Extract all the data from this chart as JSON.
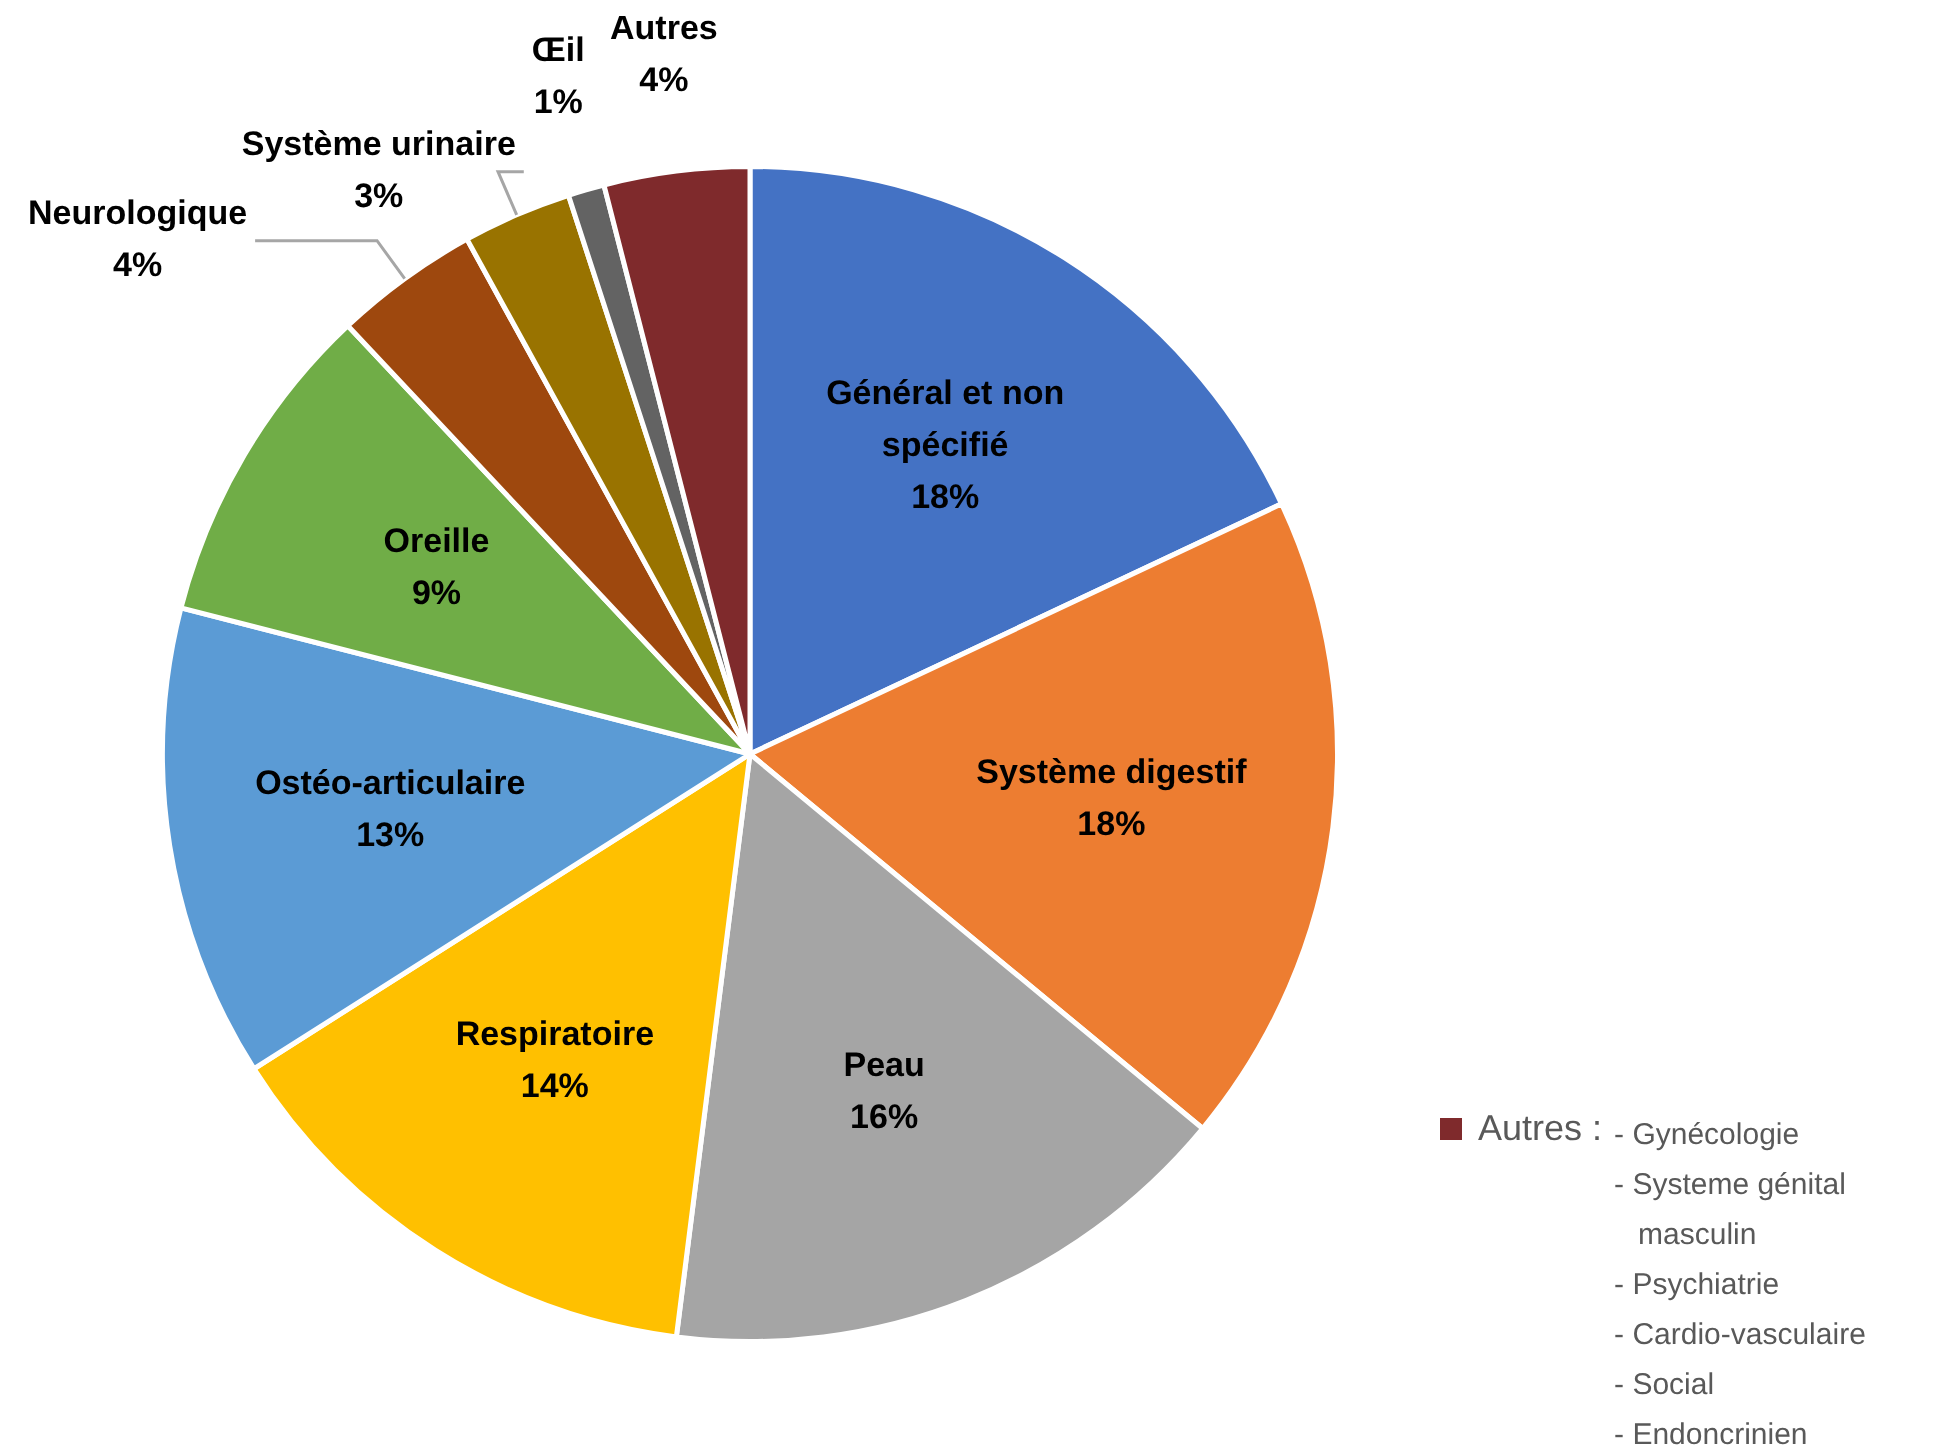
{
  "chart_data": {
    "type": "pie",
    "categories": [
      "Général et non spécifié",
      "Système digestif",
      "Peau",
      "Respiratoire",
      "Ostéo-articulaire",
      "Oreille",
      "Neurologique",
      "Système urinaire",
      "Œil",
      "Autres"
    ],
    "values": [
      18,
      18,
      16,
      14,
      13,
      9,
      4,
      3,
      1,
      4
    ],
    "value_labels": [
      "18%",
      "18%",
      "16%",
      "14%",
      "13%",
      "9%",
      "4%",
      "3%",
      "1%",
      "4%"
    ],
    "colors": [
      "#4472c4",
      "#ed7d31",
      "#a5a5a5",
      "#ffc000",
      "#5b9bd5",
      "#70ad47",
      "#9e480e",
      "#997300",
      "#636363",
      "#7f2a2c"
    ],
    "annotations": [
      "Autres :",
      "- Gynécologie",
      "- Systeme génital masculin",
      "- Psychiatrie",
      "- Cardio-vasculaire",
      "- Social",
      "- Endoncrinien"
    ],
    "legend": false
  }
}
